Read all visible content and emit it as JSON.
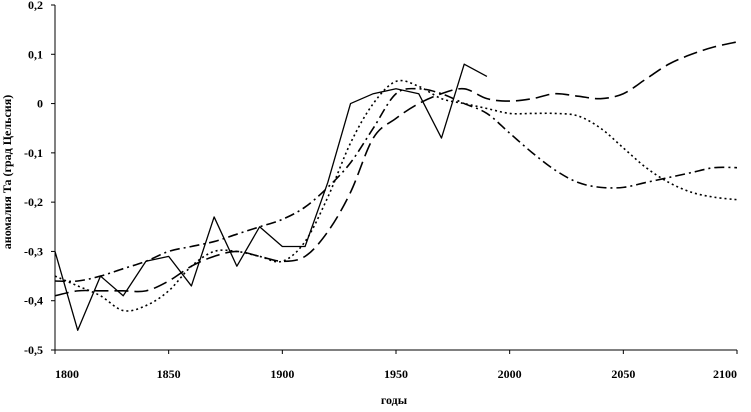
{
  "chart_data": {
    "type": "line",
    "title": "",
    "xlabel": "годы",
    "ylabel": "аномалия Та (град Цельсия)",
    "xlim": [
      1800,
      2100
    ],
    "ylim": [
      -0.5,
      0.2
    ],
    "x_ticks": [
      1800,
      1850,
      1900,
      1950,
      2000,
      2050,
      2100
    ],
    "x_tick_labels": [
      "1800",
      "1850",
      "1900",
      "1950",
      "2000",
      "2050",
      "2100"
    ],
    "y_ticks": [
      0.2,
      0.1,
      0,
      -0.1,
      -0.2,
      -0.3,
      -0.4,
      -0.5
    ],
    "y_tick_labels": [
      "0,2",
      "0,1",
      "0",
      "-0,1",
      "-0,2",
      "-0,3",
      "-0,4",
      "-0,5"
    ],
    "grid": false,
    "legend": "none",
    "series": [
      {
        "style": "solid",
        "color": "#000000",
        "x": [
          1800,
          1810,
          1820,
          1830,
          1840,
          1850,
          1860,
          1870,
          1880,
          1890,
          1900,
          1910,
          1920,
          1930,
          1940,
          1950,
          1960,
          1970,
          1980,
          1990
        ],
        "y": [
          -0.3,
          -0.46,
          -0.35,
          -0.39,
          -0.32,
          -0.31,
          -0.37,
          -0.23,
          -0.33,
          -0.25,
          -0.29,
          -0.29,
          -0.16,
          0.0,
          0.02,
          0.03,
          0.02,
          -0.07,
          0.08,
          0.055
        ]
      },
      {
        "style": "dotted",
        "color": "#000000",
        "x": [
          1800,
          1810,
          1820,
          1830,
          1840,
          1850,
          1860,
          1870,
          1880,
          1890,
          1900,
          1910,
          1920,
          1930,
          1940,
          1950,
          1960,
          1970,
          1980,
          1990,
          2000,
          2010,
          2020,
          2030,
          2040,
          2050,
          2060,
          2070,
          2080,
          2090,
          2100
        ],
        "y": [
          -0.35,
          -0.37,
          -0.39,
          -0.42,
          -0.41,
          -0.38,
          -0.33,
          -0.3,
          -0.3,
          -0.31,
          -0.32,
          -0.28,
          -0.19,
          -0.08,
          0.0,
          0.045,
          0.035,
          0.01,
          0.0,
          -0.01,
          -0.02,
          -0.02,
          -0.02,
          -0.025,
          -0.05,
          -0.09,
          -0.13,
          -0.16,
          -0.18,
          -0.19,
          -0.195
        ]
      },
      {
        "style": "dash-dot",
        "color": "#000000",
        "x": [
          1800,
          1810,
          1820,
          1830,
          1840,
          1850,
          1860,
          1870,
          1880,
          1890,
          1900,
          1910,
          1920,
          1930,
          1940,
          1950,
          1960,
          1970,
          1980,
          1990,
          2000,
          2010,
          2020,
          2030,
          2040,
          2050,
          2060,
          2070,
          2080,
          2090,
          2100
        ],
        "y": [
          -0.36,
          -0.36,
          -0.35,
          -0.335,
          -0.32,
          -0.3,
          -0.29,
          -0.28,
          -0.265,
          -0.25,
          -0.235,
          -0.21,
          -0.17,
          -0.12,
          -0.05,
          0.02,
          0.03,
          0.02,
          0.0,
          -0.02,
          -0.06,
          -0.1,
          -0.135,
          -0.16,
          -0.17,
          -0.17,
          -0.16,
          -0.15,
          -0.14,
          -0.13,
          -0.13
        ]
      },
      {
        "style": "long-dash",
        "color": "#000000",
        "x": [
          1800,
          1810,
          1820,
          1830,
          1840,
          1850,
          1860,
          1870,
          1880,
          1890,
          1900,
          1910,
          1920,
          1930,
          1940,
          1950,
          1960,
          1970,
          1980,
          1990,
          2000,
          2010,
          2020,
          2030,
          2040,
          2050,
          2060,
          2070,
          2080,
          2090,
          2100
        ],
        "y": [
          -0.39,
          -0.38,
          -0.38,
          -0.38,
          -0.38,
          -0.36,
          -0.33,
          -0.31,
          -0.3,
          -0.31,
          -0.32,
          -0.31,
          -0.26,
          -0.18,
          -0.07,
          -0.03,
          0.0,
          0.02,
          0.03,
          0.01,
          0.005,
          0.01,
          0.02,
          0.015,
          0.01,
          0.02,
          0.05,
          0.08,
          0.1,
          0.115,
          0.125
        ]
      }
    ]
  }
}
